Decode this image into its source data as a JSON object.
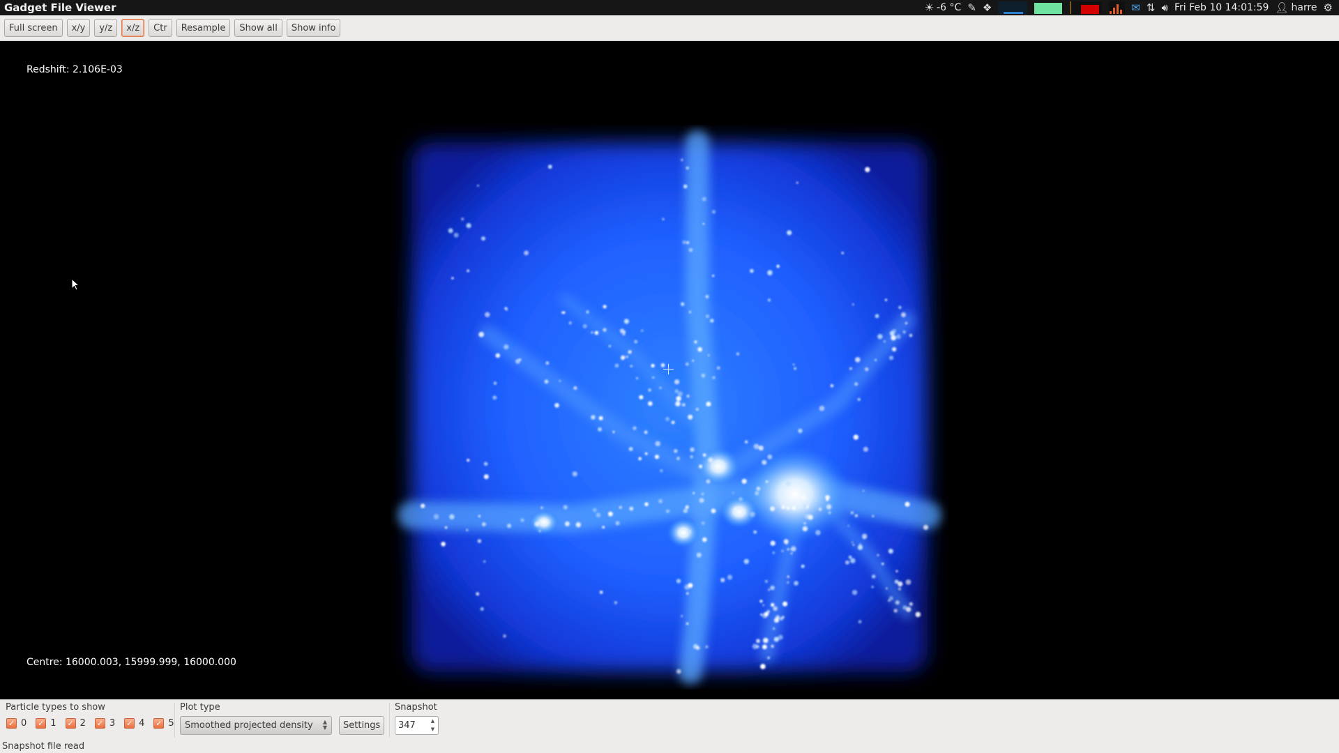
{
  "app": {
    "title": "Gadget File Viewer"
  },
  "panel": {
    "temperature": "-6 °C",
    "clock": "Fri Feb 10 14:01:59",
    "user": "harre",
    "icons": [
      "weather-sun-icon",
      "notes-icon",
      "dropbox-icon",
      "cpu-graph",
      "memory-graph",
      "network-graph",
      "load-graph",
      "mail-icon",
      "network-arrows-icon",
      "volume-icon",
      "user-icon",
      "power-gear-icon"
    ]
  },
  "toolbar": {
    "buttons": [
      {
        "label": "Full screen",
        "active": false
      },
      {
        "label": "x/y",
        "active": false
      },
      {
        "label": "y/z",
        "active": false
      },
      {
        "label": "x/z",
        "active": true
      },
      {
        "label": "Ctr",
        "active": false
      },
      {
        "label": "Resample",
        "active": false
      },
      {
        "label": "Show all",
        "active": false
      },
      {
        "label": "Show info",
        "active": false
      }
    ]
  },
  "viewport": {
    "redshift": "Redshift: 2.106E-03",
    "centre": "Centre: 16000.003, 15999.999, 16000.000"
  },
  "controls": {
    "particle_types_label": "Particle types to show",
    "particle_types": [
      {
        "label": "0",
        "checked": true
      },
      {
        "label": "1",
        "checked": true
      },
      {
        "label": "2",
        "checked": true
      },
      {
        "label": "3",
        "checked": true
      },
      {
        "label": "4",
        "checked": true
      },
      {
        "label": "5",
        "checked": true
      }
    ],
    "plot_type_label": "Plot type",
    "plot_type_value": "Smoothed projected density",
    "settings_label": "Settings",
    "snapshot_label": "Snapshot",
    "snapshot_value": "347"
  },
  "status": {
    "message": "Snapshot file read"
  },
  "colors": {
    "accent": "#e8703f",
    "density_core": "#ffffff",
    "density_mid": "#2a7bff",
    "density_edge": "#0a1a9a"
  }
}
